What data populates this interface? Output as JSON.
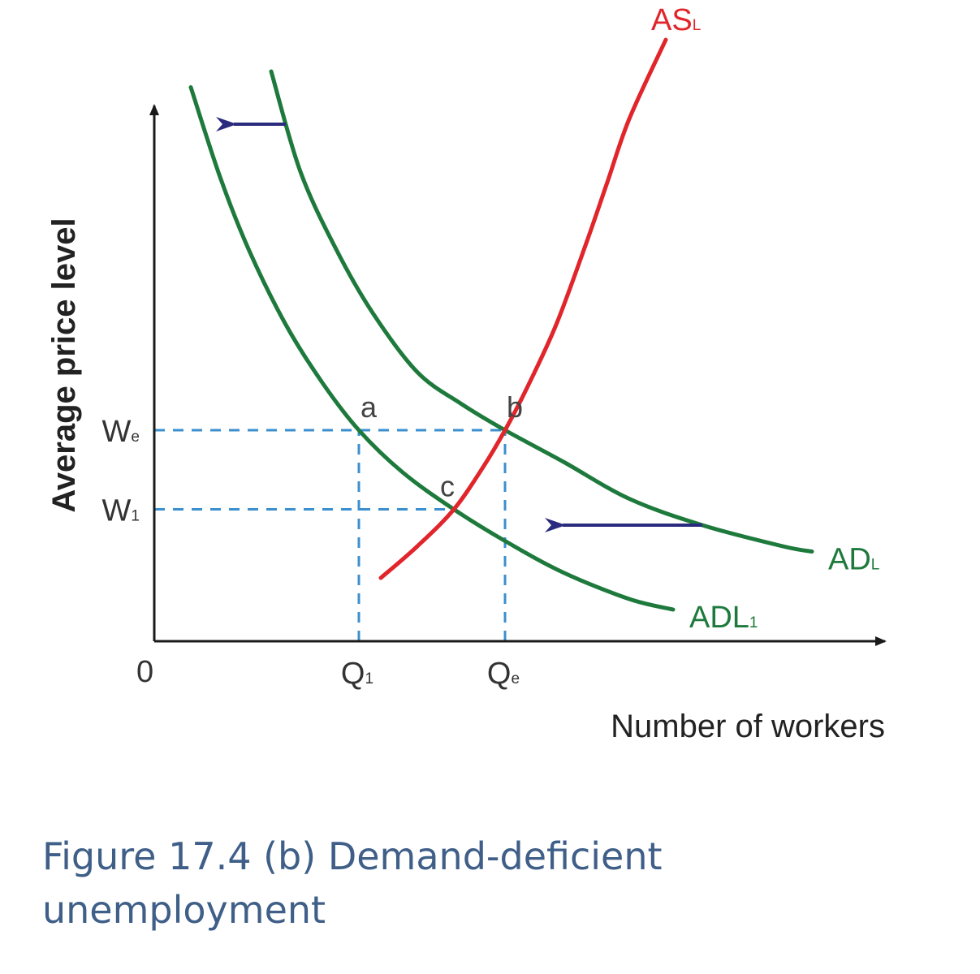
{
  "chart_data": {
    "type": "line",
    "title": "",
    "xlabel": "Number of workers",
    "ylabel": "Average price level",
    "origin_label": "0",
    "xlim": [
      0,
      10
    ],
    "ylim": [
      0,
      10
    ],
    "ticks": {
      "x": [
        {
          "label": "Q1",
          "main": "Q",
          "sub": "1",
          "value": 2.8
        },
        {
          "label": "Qe",
          "main": "Q",
          "sub": "e",
          "value": 4.8
        }
      ],
      "y": [
        {
          "label": "We",
          "main": "W",
          "sub": "e",
          "value": 4.0
        },
        {
          "label": "W1",
          "main": "W",
          "sub": "1",
          "value": 2.5
        }
      ]
    },
    "series": [
      {
        "name": "ADL1",
        "main": "ADL",
        "sub": "1",
        "color": "#1e7a3c",
        "x": [
          0.5,
          0.9,
          1.3,
          1.8,
          2.3,
          2.8,
          3.4,
          4.1,
          4.8,
          5.6,
          6.5,
          7.1
        ],
        "y": [
          10.5,
          8.8,
          7.4,
          6.0,
          4.9,
          4.0,
          3.2,
          2.5,
          1.9,
          1.3,
          0.8,
          0.6
        ]
      },
      {
        "name": "ADL",
        "main": "AD",
        "sub": "L",
        "color": "#1e7a3c",
        "x": [
          1.6,
          2.0,
          2.5,
          3.0,
          3.6,
          4.2,
          4.8,
          5.6,
          6.5,
          7.5,
          8.6,
          9.0
        ],
        "y": [
          10.8,
          8.9,
          7.4,
          6.2,
          5.1,
          4.5,
          4.0,
          3.4,
          2.7,
          2.2,
          1.8,
          1.7
        ]
      },
      {
        "name": "ASL",
        "main": "AS",
        "sub": "L",
        "color": "#e0252b",
        "x": [
          3.1,
          3.6,
          4.1,
          4.5,
          4.8,
          5.1,
          5.5,
          5.9,
          6.2,
          6.5,
          7.0
        ],
        "y": [
          1.2,
          1.8,
          2.5,
          3.3,
          4.0,
          4.8,
          6.0,
          7.5,
          8.7,
          9.9,
          11.4
        ]
      }
    ],
    "points": [
      {
        "label": "a",
        "x": 2.8,
        "y": 4.0
      },
      {
        "label": "b",
        "x": 4.8,
        "y": 4.0
      },
      {
        "label": "c",
        "x": 4.1,
        "y": 2.5
      }
    ],
    "shift_arrows": [
      {
        "from": [
          7.5,
          2.2
        ],
        "to": [
          5.5,
          2.2
        ],
        "color": "#2a2a7e"
      },
      {
        "from": [
          1.8,
          9.8
        ],
        "to": [
          1.0,
          9.8
        ],
        "color": "#2a2a7e"
      }
    ],
    "reference_lines": [
      {
        "type": "horizontal",
        "y": 4.0,
        "x_to": 4.8
      },
      {
        "type": "horizontal",
        "y": 2.5,
        "x_to": 4.1
      },
      {
        "type": "vertical",
        "x": 2.8,
        "y_to": 4.0
      },
      {
        "type": "vertical",
        "x": 4.8,
        "y_to": 4.0
      }
    ],
    "colors": {
      "axis": "#1a1a1a",
      "reference": "#3b8fcf",
      "text": "#333333",
      "point_label": "#444444"
    }
  },
  "caption": {
    "text": "Figure 17.4 (b) Demand-deficient unemployment"
  }
}
